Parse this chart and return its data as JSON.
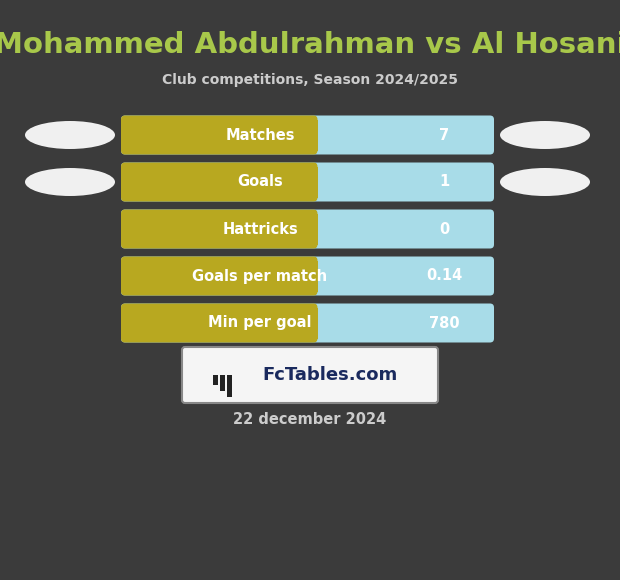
{
  "title": "Mohammed Abdulrahman vs Al Hosani",
  "subtitle": "Club competitions, Season 2024/2025",
  "date_label": "22 december 2024",
  "background_color": "#3b3b3b",
  "title_color": "#a8c84a",
  "subtitle_color": "#cccccc",
  "date_color": "#cccccc",
  "rows": [
    {
      "label": "Matches",
      "value": "7",
      "has_ellipse": true
    },
    {
      "label": "Goals",
      "value": "1",
      "has_ellipse": true
    },
    {
      "label": "Hattricks",
      "value": "0",
      "has_ellipse": false
    },
    {
      "label": "Goals per match",
      "value": "0.14",
      "has_ellipse": false
    },
    {
      "label": "Min per goal",
      "value": "780",
      "has_ellipse": false
    }
  ],
  "bar_left_color": "#b8a820",
  "bar_right_color": "#a8dce8",
  "bar_text_color": "#ffffff",
  "ellipse_color": "#f0f0f0",
  "logo_box_color": "#f5f5f5",
  "logo_border_color": "#888888",
  "logo_text_color": "#1a2a5e",
  "figw": 6.2,
  "figh": 5.8,
  "dpi": 100
}
